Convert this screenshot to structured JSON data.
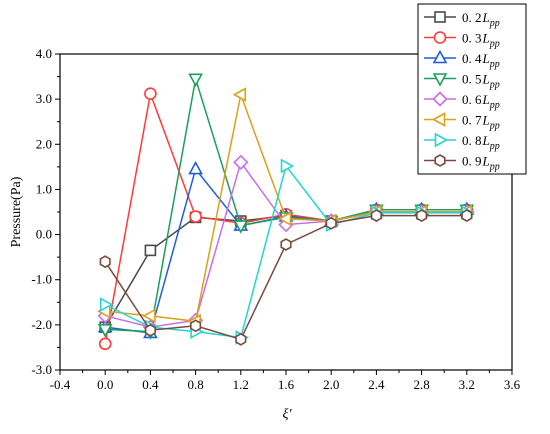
{
  "chart_data": {
    "type": "line",
    "xlabel": "ξ′",
    "ylabel": "Pressure(Pa)",
    "xlim": [
      -0.4,
      3.6
    ],
    "ylim": [
      -3.0,
      4.0
    ],
    "xticks": [
      "-0.4",
      "0.0",
      "0.4",
      "0.8",
      "1.2",
      "1.6",
      "2.0",
      "2.4",
      "2.8",
      "3.2",
      "3.6"
    ],
    "yticks": [
      "-3.0",
      "-2.0",
      "-1.0",
      "0.0",
      "1.0",
      "2.0",
      "3.0",
      "4.0"
    ],
    "grid": false,
    "legend_position": "top-right",
    "x": [
      0.0,
      0.4,
      0.8,
      1.2,
      1.6,
      2.0,
      2.4,
      2.8,
      3.2
    ],
    "series": [
      {
        "name": "0. 2",
        "sub": "pp",
        "marker": "square",
        "color": "#4a4a4a",
        "values": [
          -2.05,
          -0.35,
          0.38,
          0.3,
          0.42,
          0.3,
          0.5,
          0.5,
          0.5
        ]
      },
      {
        "name": "0. 3",
        "sub": "pp",
        "marker": "circle",
        "color": "#ff3b3b",
        "values": [
          -2.42,
          3.12,
          0.4,
          0.25,
          0.45,
          0.3,
          0.55,
          0.55,
          0.55
        ]
      },
      {
        "name": "0. 4",
        "sub": "pp",
        "marker": "triangle-up",
        "color": "#1f5fd6",
        "values": [
          -2.05,
          -2.18,
          1.45,
          0.2,
          0.4,
          0.3,
          0.55,
          0.55,
          0.55
        ]
      },
      {
        "name": "0. 5",
        "sub": "pp",
        "marker": "triangle-down",
        "color": "#1aa05a",
        "values": [
          -2.1,
          -2.15,
          3.45,
          0.2,
          0.38,
          0.3,
          0.55,
          0.55,
          0.55
        ]
      },
      {
        "name": "0. 6",
        "sub": "pp",
        "marker": "diamond",
        "color": "#c86ee8",
        "values": [
          -1.8,
          -2.05,
          -1.9,
          1.6,
          0.22,
          0.3,
          0.5,
          0.5,
          0.5
        ]
      },
      {
        "name": "0. 7",
        "sub": "pp",
        "marker": "triangle-left",
        "color": "#d9a21a",
        "values": [
          -1.7,
          -1.8,
          -1.92,
          3.1,
          0.35,
          0.3,
          0.5,
          0.5,
          0.5
        ]
      },
      {
        "name": "0. 8",
        "sub": "pp",
        "marker": "triangle-right",
        "color": "#26d4d4",
        "values": [
          -1.55,
          -2.05,
          -2.15,
          -2.28,
          1.52,
          0.22,
          0.48,
          0.48,
          0.48
        ]
      },
      {
        "name": "0. 9",
        "sub": "pp",
        "marker": "hexagon",
        "color": "#7b4a3e",
        "values": [
          -0.6,
          -2.12,
          -2.02,
          -2.32,
          -0.22,
          0.25,
          0.42,
          0.42,
          0.42
        ]
      }
    ]
  }
}
